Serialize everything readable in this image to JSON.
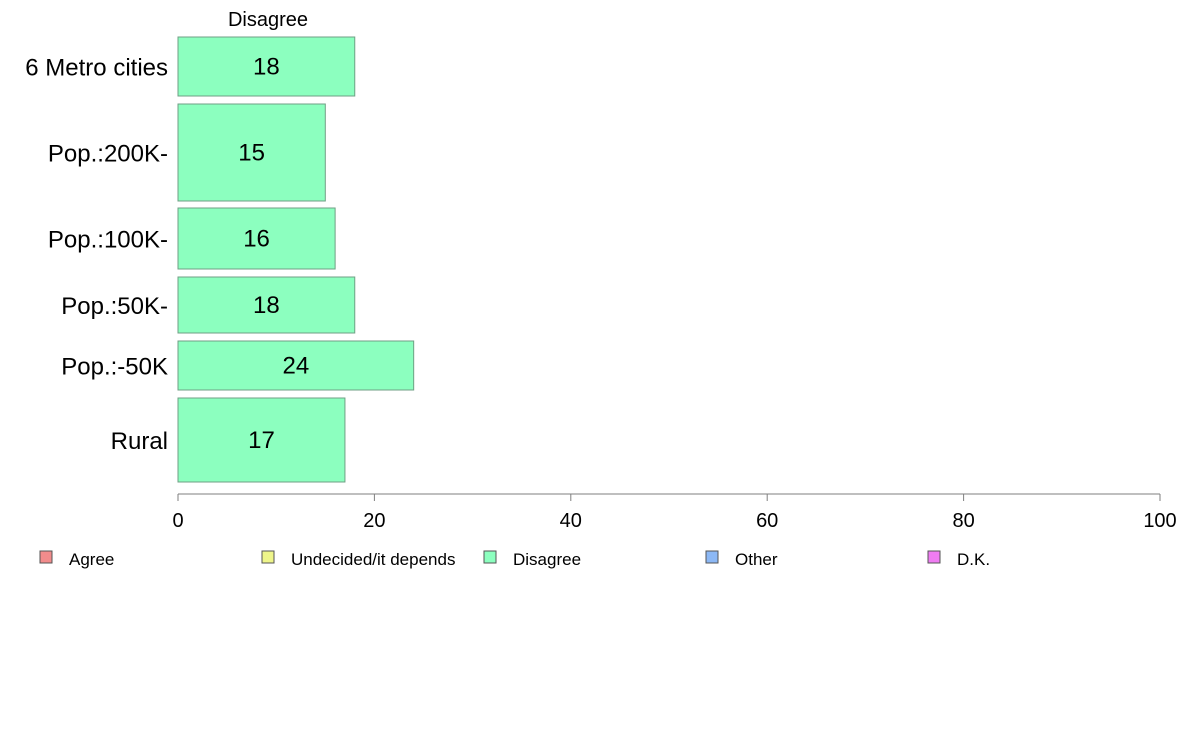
{
  "chart_data": {
    "type": "bar",
    "orientation": "horizontal",
    "column_header": "Disagree",
    "categories": [
      "6 Metro cities",
      "Pop.:200K-",
      "Pop.:100K-",
      "Pop.:50K-",
      "Pop.:-50K",
      "Rural"
    ],
    "series": [
      {
        "name": "Disagree",
        "values": [
          18,
          15,
          16,
          18,
          24,
          17
        ]
      }
    ],
    "xlim": [
      0,
      100
    ],
    "xticks": [
      0,
      20,
      40,
      60,
      80,
      100
    ],
    "grid": false,
    "legend": {
      "placement": "bottom",
      "entries": [
        {
          "label": "Agree",
          "color": "#f28c8c"
        },
        {
          "label": "Undecided/it depends",
          "color": "#eef58a"
        },
        {
          "label": "Disagree",
          "color": "#8cffbf"
        },
        {
          "label": "Other",
          "color": "#8cb8f5"
        },
        {
          "label": "D.K.",
          "color": "#ef7cf2"
        }
      ]
    },
    "colors": {
      "bar_fill": "#8cffbf",
      "bar_stroke": "#6f9f84",
      "axis": "#7f7f7f"
    }
  }
}
